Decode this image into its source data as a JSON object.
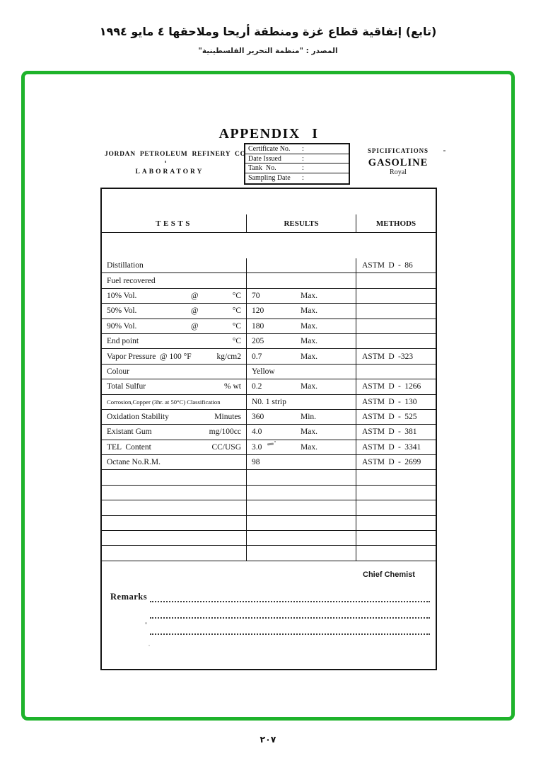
{
  "page_header": {
    "arabic_title": "(تابع) إتفاقية قطاع غزة ومنطقة أريحا وملاحقها ٤ مايو ١٩٩٤",
    "arabic_source": "المصدر :  \"منظمة التحرير الفلسطينية\""
  },
  "frame_color": "#1eb32b",
  "document": {
    "title": "APPENDIX I",
    "company": "JORDAN PETROLEUM REFINERY CO. LTD.",
    "laboratory": "LABORATORY",
    "certificate_fields": [
      {
        "label": "Certificate No.",
        "colon": ":"
      },
      {
        "label": "Date Issued",
        "colon": ":"
      },
      {
        "label": "Tank  No.",
        "colon": ":"
      },
      {
        "label": "Sampling Date",
        "colon": ":"
      }
    ],
    "spec": {
      "heading": "SPICIFICATIONS",
      "product": "GASOLINE",
      "grade": "Royal"
    },
    "table": {
      "headers": [
        "TESTS",
        "RESULTS",
        "METHODS"
      ],
      "rows": [
        {
          "name": "Distillation",
          "mid": "",
          "unit": "",
          "result": "",
          "qual": "",
          "method": "ASTM D - 86",
          "small": false
        },
        {
          "name": "Fuel recovered",
          "mid": "",
          "unit": "",
          "result": "",
          "qual": "",
          "method": "",
          "small": false
        },
        {
          "name": "10% Vol.",
          "mid": "@",
          "unit": "°C",
          "result": "70",
          "qual": "Max.",
          "method": "",
          "small": false
        },
        {
          "name": "50% Vol.",
          "mid": "@",
          "unit": "°C",
          "result": "120",
          "qual": "Max.",
          "method": "",
          "small": false
        },
        {
          "name": "90% Vol.",
          "mid": "@",
          "unit": "°C",
          "result": "180",
          "qual": "Max.",
          "method": "",
          "small": false
        },
        {
          "name": "End point",
          "mid": "",
          "unit": "°C",
          "result": "205",
          "qual": "Max.",
          "method": "",
          "small": false
        },
        {
          "name": "Vapor Pressure  @ 100 °F",
          "mid": "",
          "unit": "kg/cm2",
          "result": "0.7",
          "qual": "Max.",
          "method": "ASTM D -323",
          "small": false
        },
        {
          "name": "Colour",
          "mid": "",
          "unit": "",
          "result": "Yellow",
          "qual": "",
          "method": "",
          "small": false
        },
        {
          "name": "Total Sulfur",
          "mid": "",
          "unit": "% wt",
          "result": "0.2",
          "qual": "Max.",
          "method": "ASTM D - 1266",
          "small": false
        },
        {
          "name": "Corrosion,Copper (3hr. at 50°C) Classification",
          "mid": "",
          "unit": "",
          "result": "N0. 1 strip",
          "qual": "",
          "method": "ASTM D - 130",
          "small": true
        },
        {
          "name": "Oxidation Stability",
          "mid": "",
          "unit": "Minutes",
          "result": "360",
          "qual": "Min.",
          "method": "ASTM D - 525",
          "small": false
        },
        {
          "name": "Existant Gum",
          "mid": "",
          "unit": "mg/100cc",
          "result": "4.0",
          "qual": "Max.",
          "method": "ASTM D - 381",
          "small": false
        },
        {
          "name": "TEL  Content",
          "mid": "",
          "unit": "CC/USG",
          "result": "3.0",
          "qual": "Max.",
          "method": "ASTM D - 3341",
          "small": false
        },
        {
          "name": "Octane No.R.M.",
          "mid": "",
          "unit": "",
          "result": "98",
          "qual": "",
          "method": "ASTM D - 2699",
          "small": false
        },
        {
          "name": "",
          "mid": "",
          "unit": "",
          "result": "",
          "qual": "",
          "method": "",
          "small": false
        },
        {
          "name": "",
          "mid": "",
          "unit": "",
          "result": "",
          "qual": "",
          "method": "",
          "small": false
        },
        {
          "name": "",
          "mid": "",
          "unit": "",
          "result": "",
          "qual": "",
          "method": "",
          "small": false
        },
        {
          "name": "",
          "mid": "",
          "unit": "",
          "result": "",
          "qual": "",
          "method": "",
          "small": false
        },
        {
          "name": "",
          "mid": "",
          "unit": "",
          "result": "",
          "qual": "",
          "method": "",
          "small": false
        },
        {
          "name": "",
          "mid": "",
          "unit": "",
          "result": "",
          "qual": "",
          "method": "",
          "small": false
        }
      ]
    },
    "remarks_label": "Remarks",
    "signature": "Chief Chemist"
  },
  "page_footer": {
    "page_number": "٢٠٧"
  }
}
